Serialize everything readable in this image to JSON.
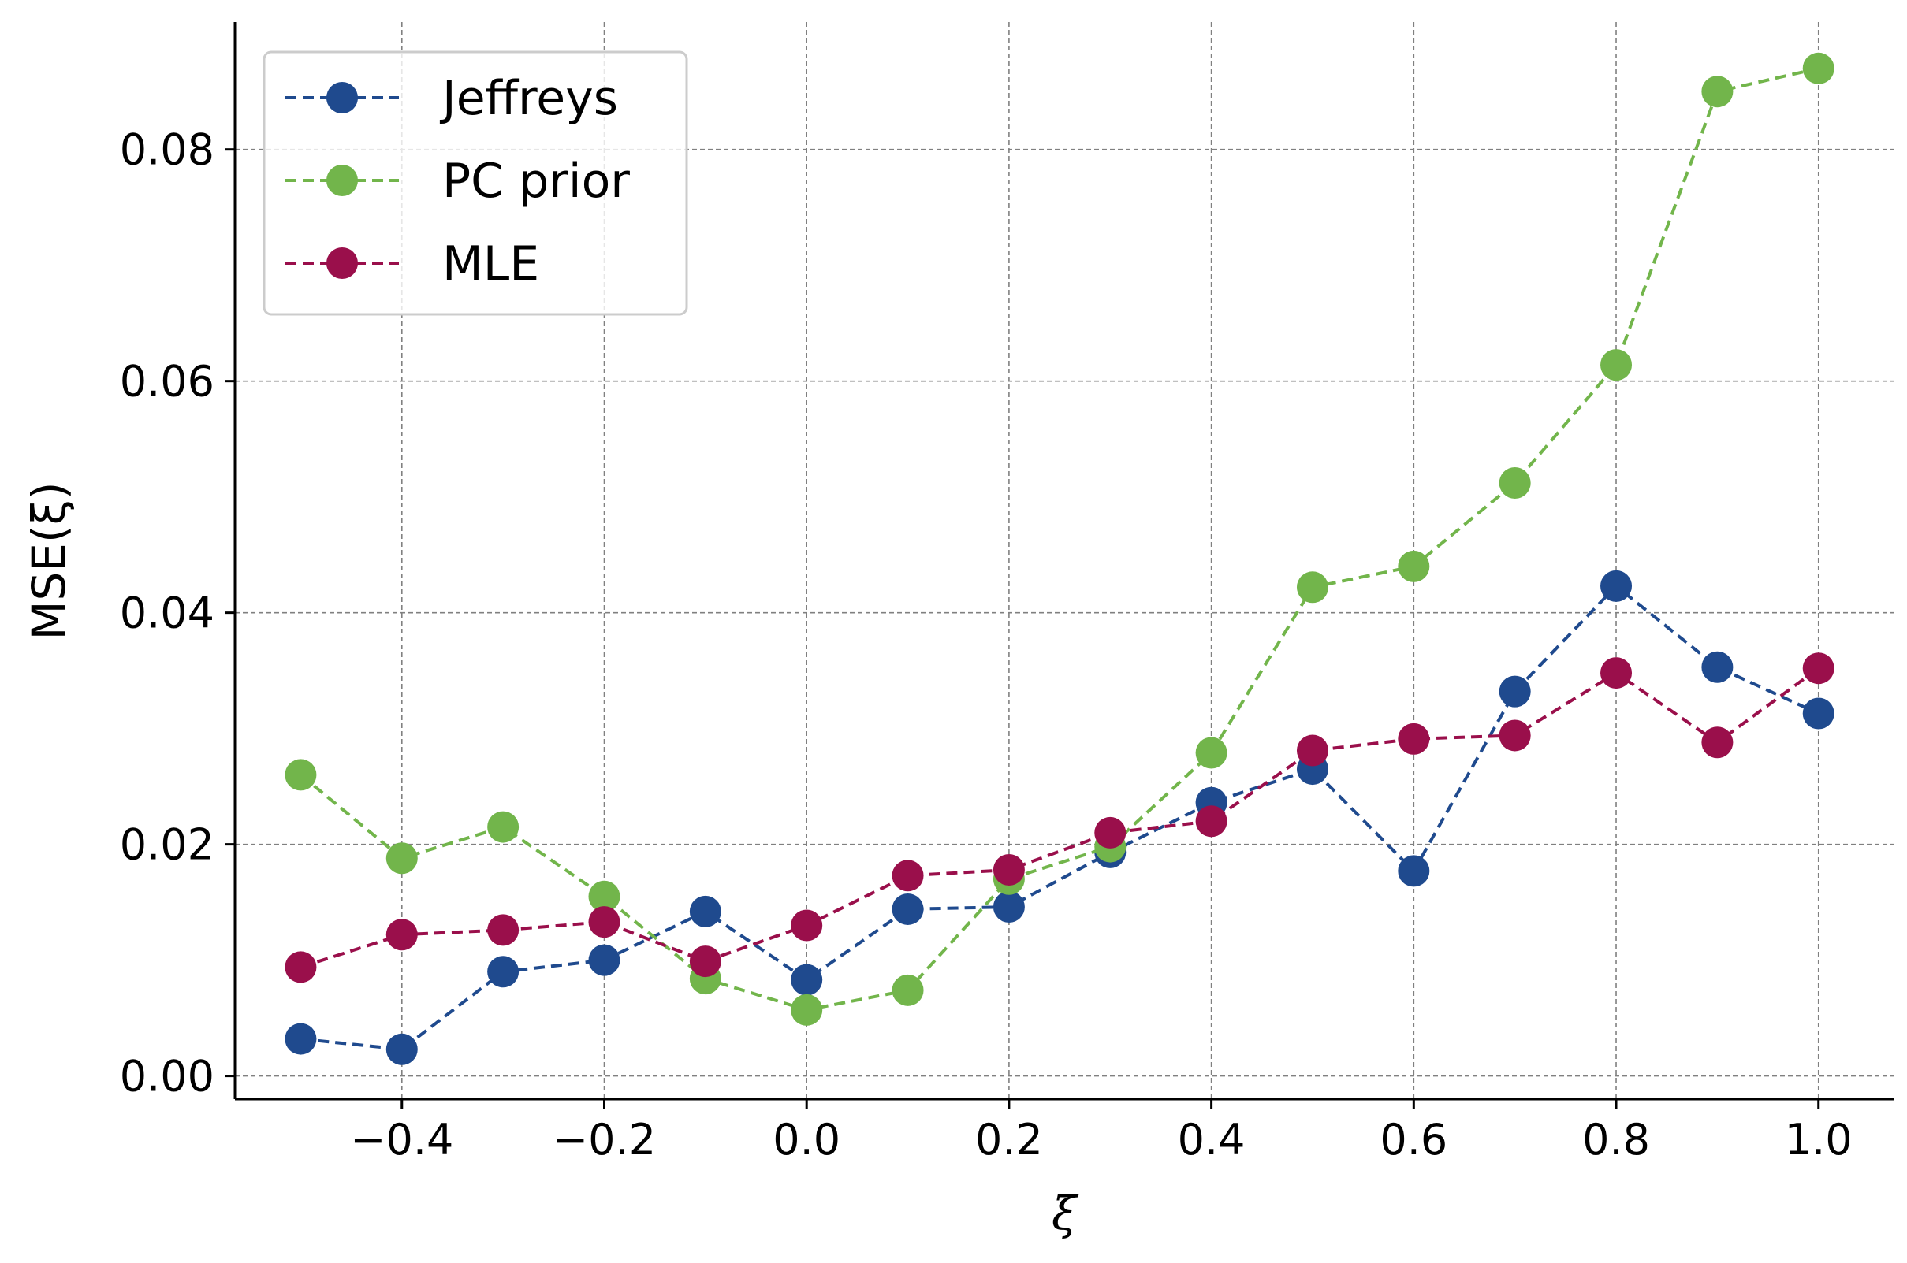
{
  "chart_data": {
    "type": "line",
    "title": "",
    "xlabel": "ξ",
    "ylabel": "MSE(ξ)",
    "x": [
      -0.5,
      -0.4,
      -0.3,
      -0.2,
      -0.1,
      0.0,
      0.1,
      0.2,
      0.3,
      0.4,
      0.5,
      0.6,
      0.7,
      0.8,
      0.9,
      1.0
    ],
    "xlim": [
      -0.565,
      1.075
    ],
    "ylim": [
      -0.002,
      0.091
    ],
    "xticks": [
      -0.4,
      -0.2,
      0.0,
      0.2,
      0.4,
      0.6,
      0.8,
      1.0
    ],
    "xtick_labels": [
      "−0.4",
      "−0.2",
      "0.0",
      "0.2",
      "0.4",
      "0.6",
      "0.8",
      "1.0"
    ],
    "yticks": [
      0.0,
      0.02,
      0.04,
      0.06,
      0.08
    ],
    "ytick_labels": [
      "0.00",
      "0.02",
      "0.04",
      "0.06",
      "0.08"
    ],
    "grid": true,
    "legend_position": "top-left",
    "series": [
      {
        "name": "Jeffreys",
        "color": "#1f4a8e",
        "values": [
          0.0032,
          0.0023,
          0.009,
          0.01,
          0.0142,
          0.0083,
          0.0144,
          0.0146,
          0.0193,
          0.0236,
          0.0265,
          0.0177,
          0.0332,
          0.0423,
          0.0353,
          0.0313
        ]
      },
      {
        "name": "PC prior",
        "color": "#72b54b",
        "values": [
          0.026,
          0.0188,
          0.0215,
          0.0155,
          0.0084,
          0.0057,
          0.0074,
          0.017,
          0.0198,
          0.0279,
          0.0422,
          0.044,
          0.0512,
          0.0614,
          0.085,
          0.087
        ]
      },
      {
        "name": "MLE",
        "color": "#9a0f4b",
        "values": [
          0.0094,
          0.0122,
          0.0126,
          0.0133,
          0.0099,
          0.013,
          0.0173,
          0.0178,
          0.021,
          0.022,
          0.0281,
          0.0291,
          0.0294,
          0.0348,
          0.0288,
          0.0352
        ]
      }
    ]
  }
}
